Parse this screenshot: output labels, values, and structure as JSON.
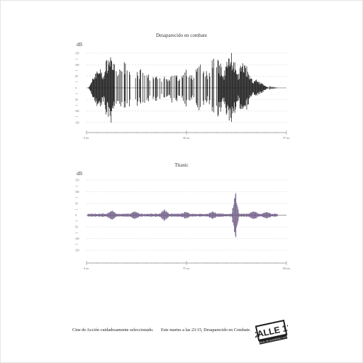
{
  "colors": {
    "grid": "#cfcfcf",
    "axis": "#9a9a9a",
    "wave_dark": "#1a1a1a",
    "fire_a": "#f09a30",
    "fire_b": "#c43d10",
    "wave_purple": "#6e5a86",
    "logo": "#1e1e1e"
  },
  "chart_data": [
    {
      "type": "area",
      "title": "Desaparecido en combate",
      "ylabel": "dB",
      "yticks": [
        "150",
        "100",
        "50",
        "0",
        "50",
        "100",
        "150"
      ],
      "xticks": [
        "0 sec",
        "60 sec",
        "97 sec"
      ],
      "style": "fire-textured waveform"
    },
    {
      "type": "area",
      "title": "Titanic",
      "ylabel": "dB",
      "yticks": [
        "150",
        "100",
        "50",
        "0",
        "50",
        "100",
        "150"
      ],
      "xticks": [
        "0 sec",
        "97 sec",
        "194 sec"
      ],
      "style": "purple waveform"
    }
  ],
  "footer": {
    "tagline": "Cine de Acción cuidadosamente seleccionado.",
    "announcement": "Este martes a las 23:15, Desaparecido en Combate."
  },
  "logo": {
    "brand": "CALLE 13",
    "slogan": "EL CANAL DE SUSPENSE Y ACCIÓN"
  }
}
